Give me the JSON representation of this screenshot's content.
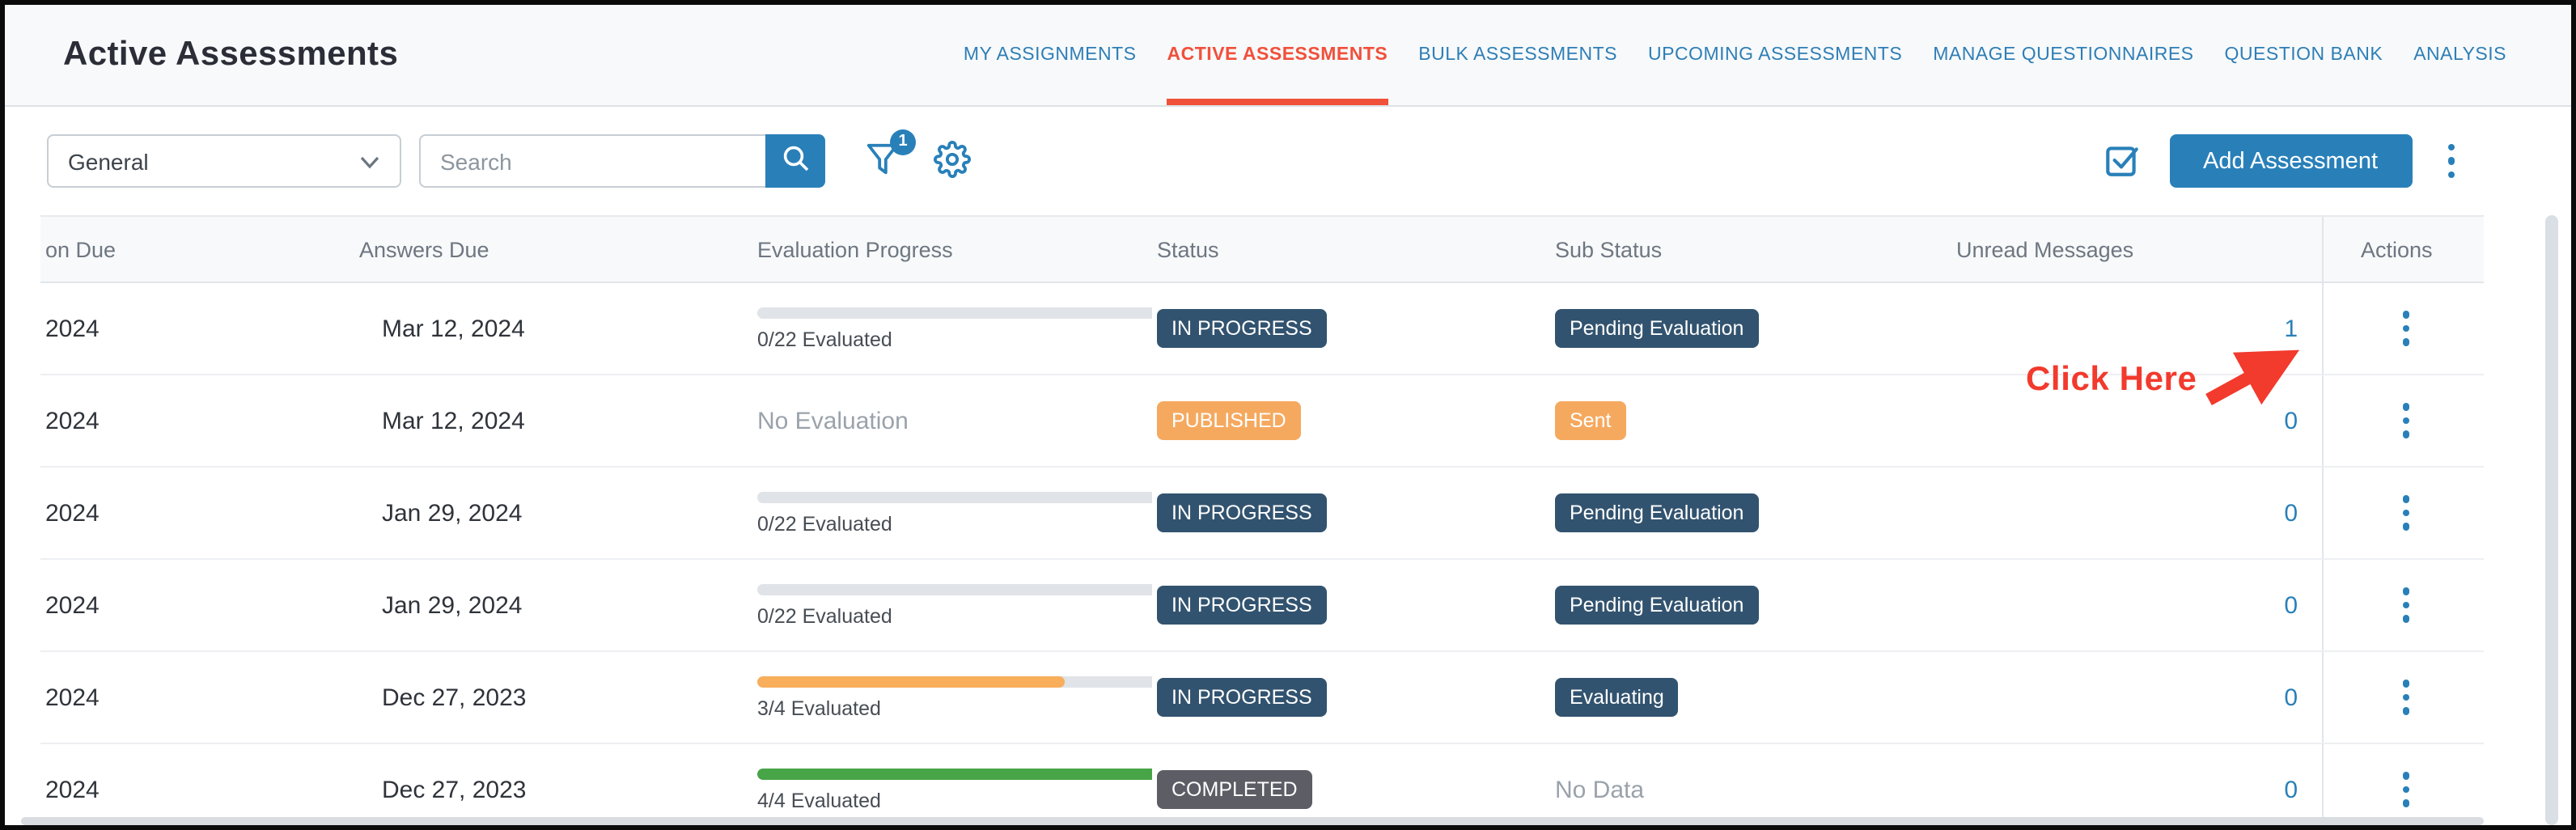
{
  "window": {
    "title": "Active Assessments"
  },
  "nav": {
    "tabs": [
      {
        "label": "MY ASSIGNMENTS",
        "active": false
      },
      {
        "label": "ACTIVE ASSESSMENTS",
        "active": true
      },
      {
        "label": "BULK ASSESSMENTS",
        "active": false
      },
      {
        "label": "UPCOMING ASSESSMENTS",
        "active": false
      },
      {
        "label": "MANAGE QUESTIONNAIRES",
        "active": false
      },
      {
        "label": "QUESTION BANK",
        "active": false
      },
      {
        "label": "ANALYSIS",
        "active": false
      }
    ]
  },
  "toolbar": {
    "category_dropdown": {
      "value": "General",
      "icon": "chevron-down-icon"
    },
    "search": {
      "placeholder": "Search",
      "button_icon": "search-icon"
    },
    "filter": {
      "icon": "filter-funnel-icon",
      "badge_count": "1"
    },
    "settings_icon": "gear-icon",
    "multi_select_icon": "checkbox-icon",
    "add_button_label": "Add Assessment",
    "more_menu_icon": "kebab-menu-icon"
  },
  "table": {
    "columns": [
      "on Due",
      "Answers Due",
      "Evaluation Progress",
      "Status",
      "Sub Status",
      "Unread Messages",
      "Actions"
    ],
    "rows": [
      {
        "due": "2024",
        "answers_due": "Mar 12, 2024",
        "progress": {
          "label": "0/22 Evaluated",
          "percent": 0,
          "bar": "empty"
        },
        "status": {
          "label": "IN PROGRESS",
          "variant": "navy"
        },
        "sub_status": {
          "label": "Pending Evaluation",
          "variant": "navy"
        },
        "unread_messages": "1"
      },
      {
        "due": "2024",
        "answers_due": "Mar 12, 2024",
        "progress": {
          "label": "No Evaluation",
          "percent": null,
          "bar": "none"
        },
        "status": {
          "label": "PUBLISHED",
          "variant": "orange"
        },
        "sub_status": {
          "label": "Sent",
          "variant": "orange"
        },
        "unread_messages": "0"
      },
      {
        "due": "2024",
        "answers_due": "Jan 29, 2024",
        "progress": {
          "label": "0/22 Evaluated",
          "percent": 0,
          "bar": "empty"
        },
        "status": {
          "label": "IN PROGRESS",
          "variant": "navy"
        },
        "sub_status": {
          "label": "Pending Evaluation",
          "variant": "navy"
        },
        "unread_messages": "0"
      },
      {
        "due": "2024",
        "answers_due": "Jan 29, 2024",
        "progress": {
          "label": "0/22 Evaluated",
          "percent": 0,
          "bar": "empty"
        },
        "status": {
          "label": "IN PROGRESS",
          "variant": "navy"
        },
        "sub_status": {
          "label": "Pending Evaluation",
          "variant": "navy"
        },
        "unread_messages": "0"
      },
      {
        "due": "2024",
        "answers_due": "Dec 27, 2023",
        "progress": {
          "label": "3/4 Evaluated",
          "percent": 75,
          "bar": "orange"
        },
        "status": {
          "label": "IN PROGRESS",
          "variant": "navy"
        },
        "sub_status": {
          "label": "Evaluating",
          "variant": "navy"
        },
        "unread_messages": "0"
      },
      {
        "due": "2024",
        "answers_due": "Dec 27, 2023",
        "progress": {
          "label": "4/4 Evaluated",
          "percent": 100,
          "bar": "green"
        },
        "status": {
          "label": "COMPLETED",
          "variant": "gray"
        },
        "sub_status": {
          "label": "No Data",
          "variant": "text"
        },
        "unread_messages": "0"
      }
    ]
  },
  "annotation": {
    "label": "Click Here",
    "target": "row-1 unread messages count"
  },
  "colors": {
    "accent_blue": "#2980b9",
    "tab_blue": "#2e7eb5",
    "active_tab_red": "#f1503b",
    "badge_navy": "#32536f",
    "badge_orange": "#f5a95f",
    "badge_gray": "#5c5d65",
    "progress_green": "#47a447",
    "progress_orange": "#f8ae5b",
    "progress_track": "#e0e3e7",
    "annotation_red": "#f23a2d"
  }
}
